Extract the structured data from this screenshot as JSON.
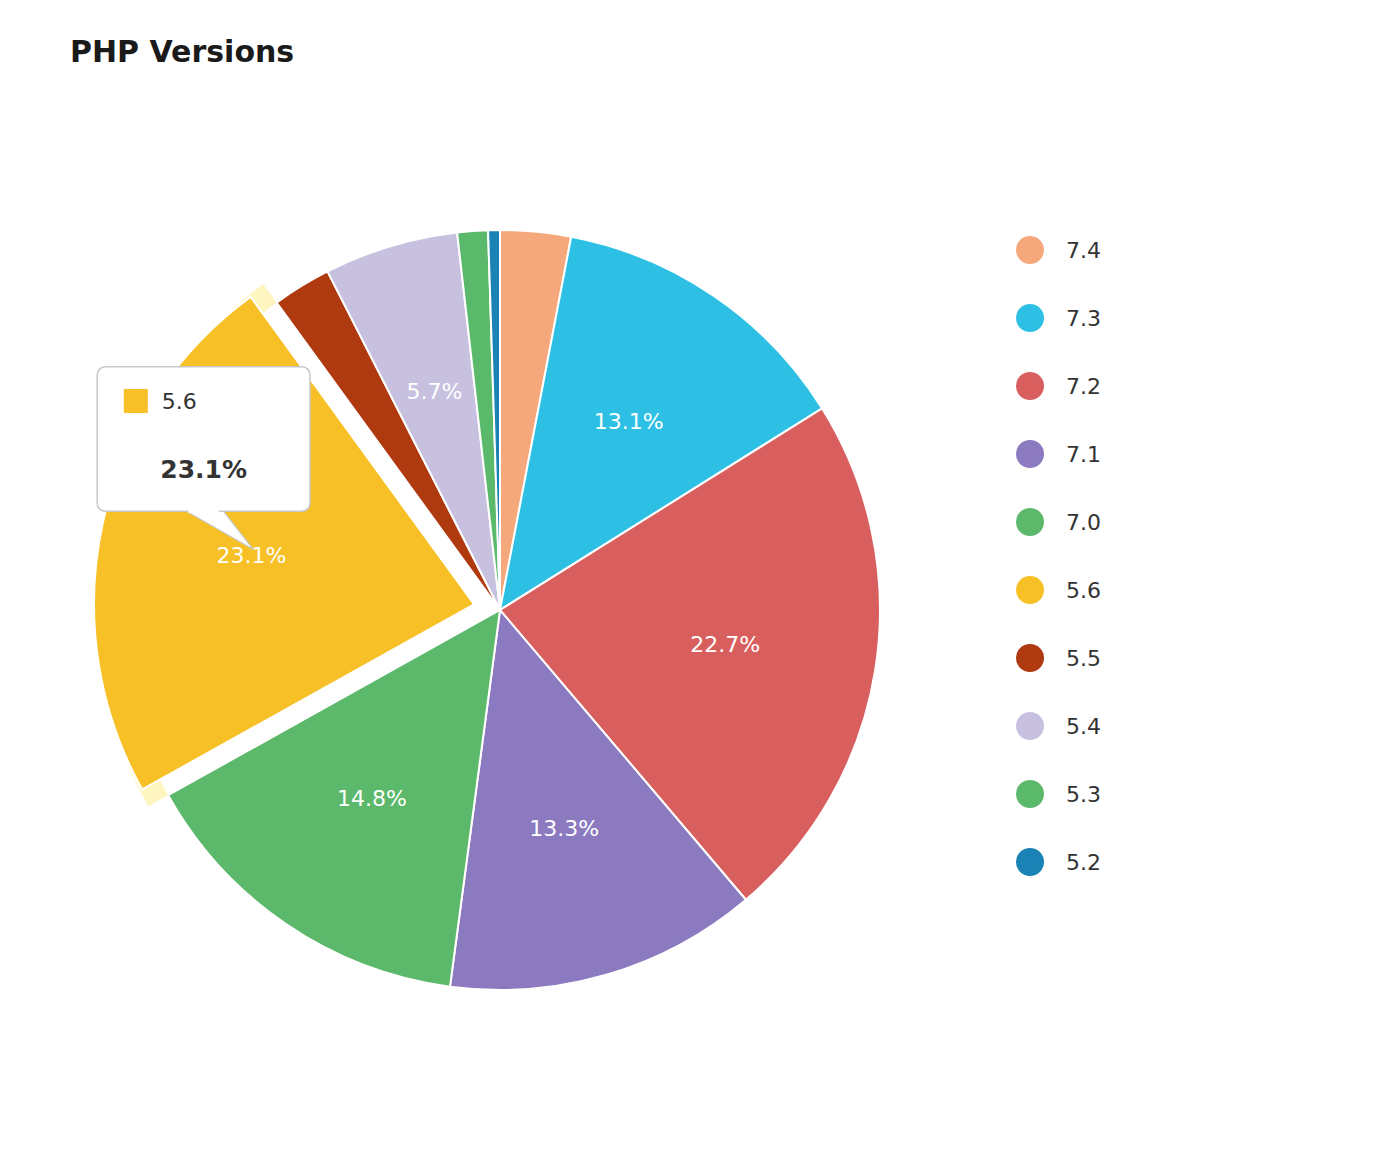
{
  "chart_data": {
    "type": "pie",
    "title": "PHP Versions",
    "categories": [
      "7.4",
      "7.3",
      "7.2",
      "7.1",
      "7.0",
      "5.6",
      "5.5",
      "5.4",
      "5.3",
      "5.2"
    ],
    "values": [
      3.0,
      13.1,
      22.7,
      13.3,
      14.8,
      23.1,
      2.5,
      5.7,
      1.3,
      0.5
    ],
    "colors": [
      "#F5A87B",
      "#2EC0E4",
      "#D95F5F",
      "#8B7AC0",
      "#5CB96B",
      "#F6C026",
      "#B03A10",
      "#C8C0DF",
      "#5BB96B",
      "#1A82B4"
    ],
    "data_labels": true,
    "value_labels": [
      null,
      "13.1%",
      "22.7%",
      "13.3%",
      "14.8%",
      "23.1%",
      null,
      "5.7%",
      null,
      null
    ],
    "annotations": [
      "5.6",
      "23.1%"
    ],
    "legend": "right"
  }
}
